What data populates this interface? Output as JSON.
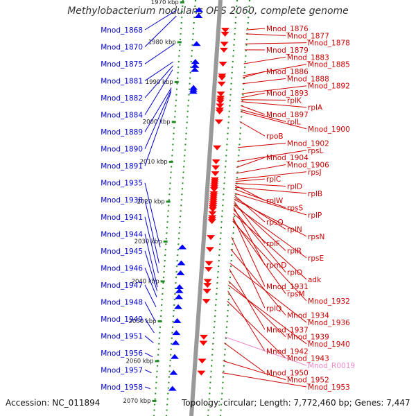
{
  "title": "Methylobacterium nodulans ORS 2060, complete genome",
  "accession": "Accession: NC_011894",
  "summary": "Topology: circular; Length: 7,772,460 bp; Genes: 7,447",
  "colors": {
    "left_label": "#0000cc",
    "right_label": "#cc0000",
    "rna_label": "#ee88cc",
    "backbone": "#999999",
    "tick": "#1f8a1f",
    "rev_arrow": "#ff0000",
    "fwd_arrow": "#0000ff"
  },
  "kbp_marks": [
    {
      "label": "1970 kbp",
      "kb": 1970
    },
    {
      "label": "1980 kbp",
      "kb": 1980
    },
    {
      "label": "1990 kbp",
      "kb": 1990
    },
    {
      "label": "2000 kbp",
      "kb": 2000
    },
    {
      "label": "2010 kbp",
      "kb": 2010
    },
    {
      "label": "2020 kbp",
      "kb": 2020
    },
    {
      "label": "2030 kbp",
      "kb": 2030
    },
    {
      "label": "2040 kbp",
      "kb": 2040
    },
    {
      "label": "2050 kbp",
      "kb": 2050
    },
    {
      "label": "2060 kbp",
      "kb": 2060
    },
    {
      "label": "2070 kbp",
      "kb": 2070
    }
  ],
  "left_genes": [
    {
      "name": "Mnod_1868",
      "kb": 1972.0
    },
    {
      "name": "Mnod_1870",
      "kb": 1973.5
    },
    {
      "name": "Mnod_1875",
      "kb": 1980.5
    },
    {
      "name": "Mnod_1881",
      "kb": 1985.0
    },
    {
      "name": "Mnod_1882",
      "kb": 1986.0
    },
    {
      "name": "Mnod_1884",
      "kb": 1987.0
    },
    {
      "name": "Mnod_1889",
      "kb": 1991.5
    },
    {
      "name": "Mnod_1890",
      "kb": 1992.0
    },
    {
      "name": "Mnod_1891",
      "kb": 1992.5
    },
    {
      "name": "Mnod_1935",
      "kb": 2031.5
    },
    {
      "name": "Mnod_1938",
      "kb": 2035.5
    },
    {
      "name": "Mnod_1941",
      "kb": 2038.0
    },
    {
      "name": "Mnod_1944",
      "kb": 2041.5
    },
    {
      "name": "Mnod_1945",
      "kb": 2042.5
    },
    {
      "name": "Mnod_1946",
      "kb": 2044.0
    },
    {
      "name": "Mnod_1947",
      "kb": 2046.5
    },
    {
      "name": "Mnod_1948",
      "kb": 2050.0
    },
    {
      "name": "Mnod_1949",
      "kb": 2053.0
    },
    {
      "name": "Mnod_1951",
      "kb": 2055.5
    },
    {
      "name": "Mnod_1956",
      "kb": 2059.0
    },
    {
      "name": "Mnod_1957",
      "kb": 2063.0
    },
    {
      "name": "Mnod_1958",
      "kb": 2067.0
    }
  ],
  "right_genes": [
    {
      "name": "Mnod_1876",
      "kb": 1977.0
    },
    {
      "name": "Mnod_1877",
      "kb": 1978.0
    },
    {
      "name": "Mnod_1878",
      "kb": 1980.5
    },
    {
      "name": "Mnod_1879",
      "kb": 1982.0
    },
    {
      "name": "Mnod_1883",
      "kb": 1985.5
    },
    {
      "name": "Mnod_1885",
      "kb": 1988.5
    },
    {
      "name": "Mnod_1886",
      "kb": 1989.0
    },
    {
      "name": "Mnod_1888",
      "kb": 1990.5
    },
    {
      "name": "Mnod_1892",
      "kb": 1993.0
    },
    {
      "name": "Mnod_1893",
      "kb": 1994.0
    },
    {
      "name": "rplK",
      "kb": 1994.5
    },
    {
      "name": "rplA",
      "kb": 1995.0
    },
    {
      "name": "Mnod_1897",
      "kb": 1996.0
    },
    {
      "name": "rplL",
      "kb": 1997.0
    },
    {
      "name": "Mnod_1900",
      "kb": 1997.5
    },
    {
      "name": "rpoB",
      "kb": 2000.0
    },
    {
      "name": "Mnod_1902",
      "kb": 2006.5
    },
    {
      "name": "rpsL",
      "kb": 2010.0
    },
    {
      "name": "Mnod_1904",
      "kb": 2011.5
    },
    {
      "name": "Mnod_1906",
      "kb": 2013.0
    },
    {
      "name": "rpsJ",
      "kb": 2014.5
    },
    {
      "name": "rplC",
      "kb": 2015.0
    },
    {
      "name": "rplD",
      "kb": 2015.5
    },
    {
      "name": "rplB",
      "kb": 2016.5
    },
    {
      "name": "rplW",
      "kb": 2016.0
    },
    {
      "name": "rpsS",
      "kb": 2017.0
    },
    {
      "name": "rplP",
      "kb": 2018.0
    },
    {
      "name": "rpsQ",
      "kb": 2018.5
    },
    {
      "name": "rplN",
      "kb": 2019.0
    },
    {
      "name": "rpsN",
      "kb": 2019.5
    },
    {
      "name": "rplF",
      "kb": 2020.0
    },
    {
      "name": "rplR",
      "kb": 2020.5
    },
    {
      "name": "rpsE",
      "kb": 2021.0
    },
    {
      "name": "rpmD",
      "kb": 2021.5
    },
    {
      "name": "rplO",
      "kb": 2022.0
    },
    {
      "name": "adk",
      "kb": 2023.0
    },
    {
      "name": "Mnod_1931",
      "kb": 2024.0
    },
    {
      "name": "rpsM",
      "kb": 2024.5
    },
    {
      "name": "Mnod_1932",
      "kb": 2025.0
    },
    {
      "name": "rplQ",
      "kb": 2029.0
    },
    {
      "name": "Mnod_1934",
      "kb": 2032.0
    },
    {
      "name": "Mnod_1936",
      "kb": 2035.5
    },
    {
      "name": "Mnod_1937",
      "kb": 2037.0
    },
    {
      "name": "Mnod_1939",
      "kb": 2040.0
    },
    {
      "name": "Mnod_1940",
      "kb": 2041.0
    },
    {
      "name": "Mnod_1942",
      "kb": 2042.5
    },
    {
      "name": "Mnod_1943",
      "kb": 2045.0
    },
    {
      "name": "Mnod_R0019",
      "kb": 2054.0,
      "rna": true
    },
    {
      "name": "Mnod_1950",
      "kb": 2055.5
    },
    {
      "name": "Mnod_1952",
      "kb": 2060.0
    },
    {
      "name": "Mnod_1953",
      "kb": 2063.0
    }
  ]
}
